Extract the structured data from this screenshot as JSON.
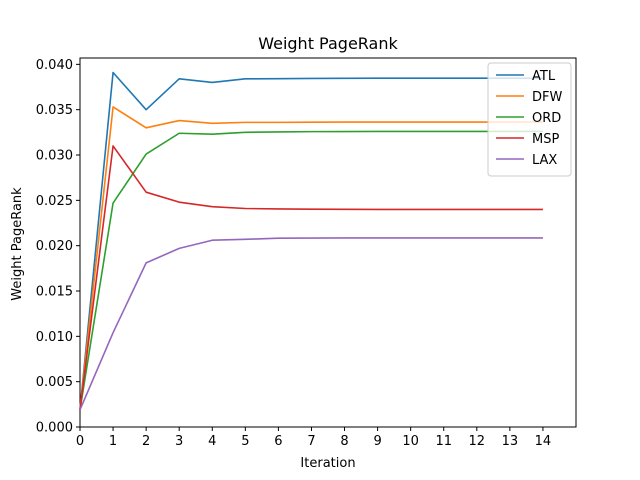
{
  "chart_data": {
    "type": "line",
    "title": "Weight PageRank",
    "xlabel": "Iteration",
    "ylabel": "Weight PageRank",
    "xlim": [
      0,
      15
    ],
    "ylim": [
      0,
      0.0407
    ],
    "x_ticks": [
      "0",
      "1",
      "2",
      "3",
      "4",
      "5",
      "6",
      "7",
      "8",
      "9",
      "10",
      "11",
      "12",
      "13",
      "14"
    ],
    "y_ticks": [
      "0.000",
      "0.005",
      "0.010",
      "0.015",
      "0.020",
      "0.025",
      "0.030",
      "0.035",
      "0.040"
    ],
    "grid": false,
    "legend_position": "top-right",
    "x": [
      0,
      1,
      2,
      3,
      4,
      5,
      6,
      7,
      8,
      9,
      10,
      11,
      12,
      13,
      14
    ],
    "series": [
      {
        "name": "ATL",
        "color": "#1f77b4",
        "values": [
          0.0019,
          0.0391,
          0.035,
          0.0384,
          0.038,
          0.0384,
          0.03842,
          0.03845,
          0.03846,
          0.03847,
          0.03847,
          0.03847,
          0.03847,
          0.03847,
          0.03847
        ]
      },
      {
        "name": "DFW",
        "color": "#ff7f0e",
        "values": [
          0.0019,
          0.0353,
          0.033,
          0.0338,
          0.0335,
          0.0336,
          0.0336,
          0.03362,
          0.03363,
          0.03363,
          0.03363,
          0.03363,
          0.03363,
          0.03363,
          0.03363
        ]
      },
      {
        "name": "ORD",
        "color": "#2ca02c",
        "values": [
          0.0019,
          0.0247,
          0.0301,
          0.0324,
          0.0323,
          0.0325,
          0.03255,
          0.03258,
          0.03259,
          0.0326,
          0.0326,
          0.0326,
          0.0326,
          0.0326,
          0.0326
        ]
      },
      {
        "name": "MSP",
        "color": "#d62728",
        "values": [
          0.0019,
          0.031,
          0.0259,
          0.0248,
          0.0243,
          0.0241,
          0.02405,
          0.02402,
          0.02401,
          0.024,
          0.024,
          0.024,
          0.024,
          0.024,
          0.024
        ]
      },
      {
        "name": "LAX",
        "color": "#9467bd",
        "values": [
          0.0019,
          0.0104,
          0.0181,
          0.0197,
          0.0206,
          0.0207,
          0.02083,
          0.02084,
          0.02085,
          0.02085,
          0.02085,
          0.02085,
          0.02085,
          0.02085,
          0.02085
        ]
      }
    ]
  }
}
